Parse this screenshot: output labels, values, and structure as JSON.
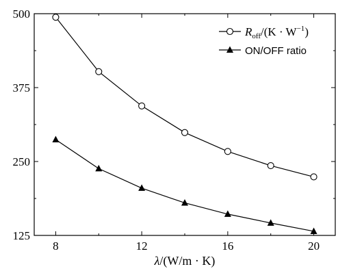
{
  "chart_data": {
    "type": "line",
    "x": [
      8,
      10,
      12,
      14,
      16,
      18,
      20
    ],
    "xticks": [
      "8",
      "12",
      "16",
      "20"
    ],
    "xtick_values": [
      8,
      12,
      16,
      20
    ],
    "yticks": [
      "125",
      "250",
      "375",
      "500"
    ],
    "ytick_values": [
      125,
      250,
      375,
      500
    ],
    "xlim": [
      7,
      21
    ],
    "ylim": [
      125,
      500
    ],
    "xlabel_var": "λ",
    "xlabel_unit": "/(W/m · K)",
    "grid": false,
    "legend_position": "top-right",
    "series": [
      {
        "name_main": "R",
        "name_sub": "off",
        "name_rest": "/(K · W",
        "name_sup": "−1",
        "name_close": ")",
        "marker": "circle-open",
        "values": [
          494,
          402,
          344,
          299,
          267,
          243,
          224
        ]
      },
      {
        "name": "ON/OFF ratio",
        "marker": "triangle-filled",
        "values": [
          287,
          238,
          205,
          180,
          161,
          146,
          132
        ]
      }
    ]
  }
}
